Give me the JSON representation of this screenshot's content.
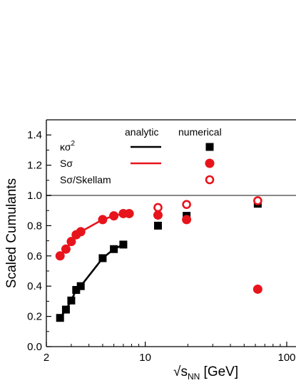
{
  "chart_data": {
    "type": "scatter",
    "x_scale": "log",
    "x_unit": "GeV",
    "xlim": [
      2,
      100
    ],
    "ylim": [
      0.0,
      1.5
    ],
    "x_ticks": [
      {
        "value": 2,
        "label": "2"
      },
      {
        "value": 10,
        "label": "10"
      },
      {
        "value": 100,
        "label": "100"
      }
    ],
    "y_ticks": [
      {
        "value": 0.0,
        "label": "0.0"
      },
      {
        "value": 0.2,
        "label": "0.2"
      },
      {
        "value": 0.4,
        "label": "0.4"
      },
      {
        "value": 0.6,
        "label": "0.6"
      },
      {
        "value": 0.8,
        "label": "0.8"
      },
      {
        "value": 1.0,
        "label": "1.0"
      },
      {
        "value": 1.2,
        "label": "1.2"
      },
      {
        "value": 1.4,
        "label": "1.4"
      }
    ],
    "ylabel": "Scaled Cumulants",
    "xlabel": {
      "root": "√",
      "var": "s",
      "sub": "NN",
      "unit": " [GeV]"
    },
    "reference_line": {
      "y": 1.0,
      "color": "#888888"
    },
    "legend": {
      "position": "top-left",
      "col_analytic": "analytic",
      "col_numerical": "numerical",
      "entries": [
        {
          "label": "κσ",
          "sup": "2",
          "color": "#000000",
          "marker": "square-filled"
        },
        {
          "label": "Sσ",
          "sup": "",
          "color": "#e8141c",
          "marker": "circle-filled"
        },
        {
          "label": "Sσ/Skellam",
          "sup": "",
          "color": "#e8141c",
          "marker": "circle-open"
        }
      ]
    },
    "series": [
      {
        "name": "κσ2 analytic",
        "kind": "line",
        "color": "#000000",
        "points": [
          [
            2.5,
            0.19
          ],
          [
            2.75,
            0.245
          ],
          [
            3.0,
            0.305
          ],
          [
            3.25,
            0.375
          ],
          [
            3.5,
            0.4
          ],
          [
            5.0,
            0.585
          ],
          [
            6.0,
            0.645
          ],
          [
            7.0,
            0.675
          ]
        ]
      },
      {
        "name": "κσ2 numerical",
        "kind": "marker",
        "marker": "square-filled",
        "color": "#000000",
        "points": [
          [
            2.5,
            0.19
          ],
          [
            2.75,
            0.245
          ],
          [
            3.0,
            0.305
          ],
          [
            3.25,
            0.375
          ],
          [
            3.5,
            0.4
          ],
          [
            5.0,
            0.585
          ],
          [
            6.0,
            0.645
          ],
          [
            7.0,
            0.675
          ],
          [
            12.3,
            0.8
          ],
          [
            19.6,
            0.865
          ],
          [
            62.4,
            0.945
          ]
        ]
      },
      {
        "name": "Sσ analytic",
        "kind": "line",
        "color": "#e8141c",
        "points": [
          [
            2.5,
            0.6
          ],
          [
            2.75,
            0.645
          ],
          [
            3.0,
            0.695
          ],
          [
            3.25,
            0.74
          ],
          [
            3.5,
            0.76
          ],
          [
            5.0,
            0.84
          ],
          [
            6.0,
            0.865
          ],
          [
            7.0,
            0.88
          ]
        ]
      },
      {
        "name": "Sσ numerical",
        "kind": "marker",
        "marker": "circle-filled",
        "color": "#e8141c",
        "points": [
          [
            2.5,
            0.6
          ],
          [
            2.75,
            0.645
          ],
          [
            3.0,
            0.695
          ],
          [
            3.25,
            0.74
          ],
          [
            3.5,
            0.76
          ],
          [
            5.0,
            0.84
          ],
          [
            6.0,
            0.865
          ],
          [
            7.0,
            0.88
          ],
          [
            7.7,
            0.88
          ],
          [
            12.3,
            0.87
          ],
          [
            19.6,
            0.84
          ],
          [
            62.4,
            0.38
          ]
        ]
      },
      {
        "name": "Sσ/Skellam numerical",
        "kind": "marker",
        "marker": "circle-open",
        "color": "#e8141c",
        "points": [
          [
            12.3,
            0.92
          ],
          [
            19.6,
            0.94
          ],
          [
            62.4,
            0.965
          ]
        ]
      }
    ]
  }
}
